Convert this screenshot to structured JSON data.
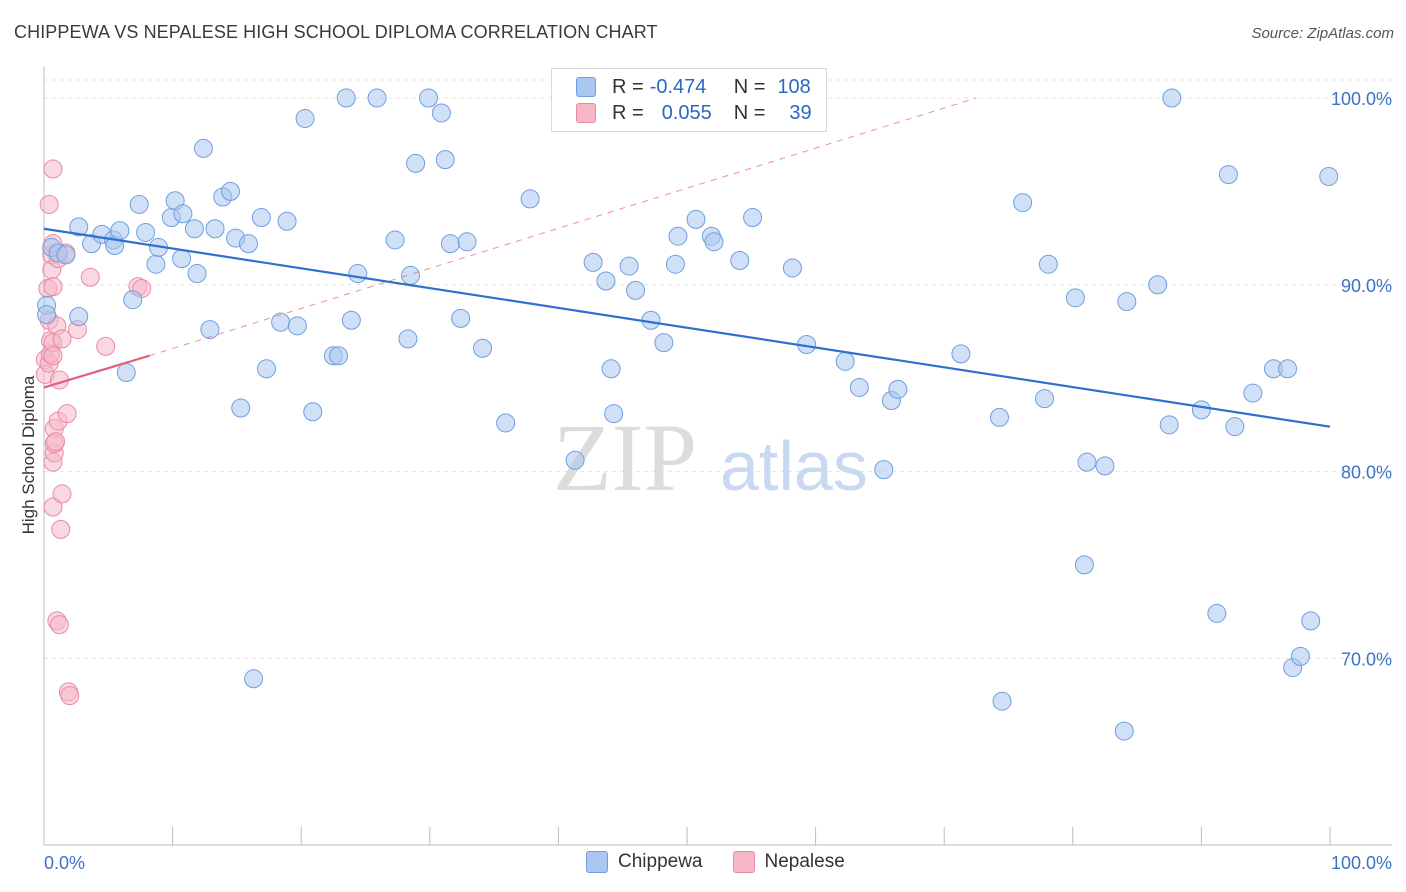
{
  "title": "CHIPPEWA VS NEPALESE HIGH SCHOOL DIPLOMA CORRELATION CHART",
  "source": "Source: ZipAtlas.com",
  "watermark": {
    "zip": "ZIP",
    "atlas": "atlas"
  },
  "legend": {
    "rows": [
      {
        "r_label": "R =",
        "r_value": "-0.474",
        "n_label": "N =",
        "n_value": "108",
        "color": "#a9c7f0",
        "stroke": "#6f9fe0"
      },
      {
        "r_label": "R =",
        "r_value": "0.055",
        "n_label": "N =",
        "n_value": "39",
        "color": "#f6b8c9",
        "stroke": "#e88aa6"
      }
    ]
  },
  "bottom_legend": [
    {
      "label": "Chippewa",
      "color": "#a9c7f0",
      "stroke": "#6f9fe0"
    },
    {
      "label": "Nepalese",
      "color": "#f6b8c9",
      "stroke": "#e88aa6"
    }
  ],
  "chart_data": {
    "type": "scatter",
    "title": "CHIPPEWA VS NEPALESE HIGH SCHOOL DIPLOMA CORRELATION CHART",
    "xlabel": "",
    "ylabel": "High School Diploma",
    "xlim": [
      0,
      100
    ],
    "ylim": [
      60,
      101.5
    ],
    "x_tick_labels": [
      "0.0%",
      "100.0%"
    ],
    "y_ticks": [
      70,
      80,
      90,
      100
    ],
    "y_tick_labels": [
      "70.0%",
      "80.0%",
      "90.0%",
      "100.0%"
    ],
    "grid": true,
    "series": [
      {
        "name": "Chippewa",
        "color": "#a9c7f0",
        "stroke": "#6f9fe0",
        "trend": {
          "x": [
            0,
            100
          ],
          "y": [
            93.0,
            82.4
          ],
          "color": "#2f6fd0",
          "dashed_extension": false
        },
        "points": [
          [
            0.2,
            88.9
          ],
          [
            0.6,
            92.0
          ],
          [
            1.1,
            91.7
          ],
          [
            1.7,
            91.6
          ],
          [
            2.7,
            88.3
          ],
          [
            2.7,
            93.1
          ],
          [
            3.7,
            92.2
          ],
          [
            4.5,
            92.7
          ],
          [
            5.4,
            92.4
          ],
          [
            5.5,
            92.1
          ],
          [
            5.9,
            92.9
          ],
          [
            6.4,
            85.3
          ],
          [
            6.9,
            89.2
          ],
          [
            7.4,
            94.3
          ],
          [
            7.9,
            92.8
          ],
          [
            8.7,
            91.1
          ],
          [
            8.9,
            92.0
          ],
          [
            9.9,
            93.6
          ],
          [
            10.2,
            94.5
          ],
          [
            10.7,
            91.4
          ],
          [
            10.8,
            93.8
          ],
          [
            11.7,
            93.0
          ],
          [
            11.9,
            90.6
          ],
          [
            12.4,
            97.3
          ],
          [
            12.9,
            87.6
          ],
          [
            13.3,
            93.0
          ],
          [
            13.9,
            94.7
          ],
          [
            14.5,
            95.0
          ],
          [
            14.9,
            92.5
          ],
          [
            15.3,
            83.4
          ],
          [
            15.9,
            92.2
          ],
          [
            16.3,
            68.9
          ],
          [
            16.9,
            93.6
          ],
          [
            17.3,
            85.5
          ],
          [
            18.4,
            88.0
          ],
          [
            18.9,
            93.4
          ],
          [
            19.7,
            87.8
          ],
          [
            20.3,
            98.9
          ],
          [
            20.9,
            83.2
          ],
          [
            22.5,
            86.2
          ],
          [
            22.9,
            86.2
          ],
          [
            23.5,
            100.0
          ],
          [
            23.9,
            88.1
          ],
          [
            24.4,
            90.6
          ],
          [
            25.9,
            100.0
          ],
          [
            27.3,
            92.4
          ],
          [
            28.3,
            87.1
          ],
          [
            28.5,
            90.5
          ],
          [
            28.9,
            96.5
          ],
          [
            29.9,
            100.0
          ],
          [
            30.9,
            99.2
          ],
          [
            31.2,
            96.7
          ],
          [
            31.6,
            92.2
          ],
          [
            32.4,
            88.2
          ],
          [
            32.9,
            92.3
          ],
          [
            34.1,
            86.6
          ],
          [
            35.9,
            82.6
          ],
          [
            37.8,
            94.6
          ],
          [
            41.3,
            80.6
          ],
          [
            42.7,
            91.2
          ],
          [
            43.7,
            90.2
          ],
          [
            44.1,
            85.5
          ],
          [
            44.3,
            83.1
          ],
          [
            45.5,
            91.0
          ],
          [
            46.0,
            89.7
          ],
          [
            47.2,
            88.1
          ],
          [
            48.2,
            86.9
          ],
          [
            49.1,
            91.1
          ],
          [
            49.3,
            92.6
          ],
          [
            50.7,
            93.5
          ],
          [
            51.9,
            92.6
          ],
          [
            52.1,
            92.3
          ],
          [
            54.1,
            91.3
          ],
          [
            55.1,
            93.6
          ],
          [
            58.2,
            90.9
          ],
          [
            59.3,
            86.8
          ],
          [
            62.3,
            85.9
          ],
          [
            63.4,
            84.5
          ],
          [
            65.3,
            80.1
          ],
          [
            65.9,
            83.8
          ],
          [
            66.4,
            84.4
          ],
          [
            71.3,
            86.3
          ],
          [
            74.3,
            82.9
          ],
          [
            74.5,
            67.7
          ],
          [
            76.1,
            94.4
          ],
          [
            77.8,
            83.9
          ],
          [
            78.1,
            91.1
          ],
          [
            80.2,
            89.3
          ],
          [
            80.9,
            75.0
          ],
          [
            81.1,
            80.5
          ],
          [
            82.5,
            80.3
          ],
          [
            84.0,
            66.1
          ],
          [
            84.2,
            89.1
          ],
          [
            86.6,
            90.0
          ],
          [
            87.5,
            82.5
          ],
          [
            87.7,
            100.0
          ],
          [
            90.0,
            83.3
          ],
          [
            91.2,
            72.4
          ],
          [
            92.1,
            95.9
          ],
          [
            92.6,
            82.4
          ],
          [
            94.0,
            84.2
          ],
          [
            95.6,
            85.5
          ],
          [
            96.7,
            85.5
          ],
          [
            97.1,
            69.5
          ],
          [
            97.7,
            70.1
          ],
          [
            98.5,
            72.0
          ],
          [
            99.9,
            95.8
          ],
          [
            0.2,
            88.4
          ]
        ]
      },
      {
        "name": "Nepalese",
        "color": "#f6b8c9",
        "stroke": "#e88aa6",
        "trend": {
          "x": [
            0,
            8.2
          ],
          "y": [
            84.5,
            86.2
          ],
          "color": "#e0607f",
          "dashed_extension_to": [
            72.5,
            100.0
          ]
        },
        "points": [
          [
            0.1,
            86.0
          ],
          [
            0.1,
            85.2
          ],
          [
            0.3,
            89.8
          ],
          [
            0.4,
            94.3
          ],
          [
            0.4,
            88.1
          ],
          [
            0.4,
            85.8
          ],
          [
            0.5,
            87.0
          ],
          [
            0.5,
            86.3
          ],
          [
            0.6,
            91.6
          ],
          [
            0.6,
            90.8
          ],
          [
            0.7,
            96.2
          ],
          [
            0.7,
            92.2
          ],
          [
            0.7,
            89.9
          ],
          [
            0.7,
            86.9
          ],
          [
            0.7,
            86.2
          ],
          [
            0.7,
            80.5
          ],
          [
            0.7,
            78.1
          ],
          [
            0.8,
            82.3
          ],
          [
            0.8,
            81.0
          ],
          [
            0.8,
            81.5
          ],
          [
            1.0,
            87.8
          ],
          [
            1.0,
            72.0
          ],
          [
            1.1,
            91.4
          ],
          [
            1.1,
            82.7
          ],
          [
            1.2,
            84.9
          ],
          [
            1.2,
            71.8
          ],
          [
            1.3,
            76.9
          ],
          [
            1.4,
            87.1
          ],
          [
            1.4,
            78.8
          ],
          [
            1.7,
            91.7
          ],
          [
            1.8,
            83.1
          ],
          [
            1.9,
            68.2
          ],
          [
            2.0,
            68.0
          ],
          [
            2.6,
            87.6
          ],
          [
            3.6,
            90.4
          ],
          [
            4.8,
            86.7
          ],
          [
            7.3,
            89.9
          ],
          [
            7.6,
            89.8
          ],
          [
            0.9,
            81.6
          ]
        ]
      }
    ]
  }
}
